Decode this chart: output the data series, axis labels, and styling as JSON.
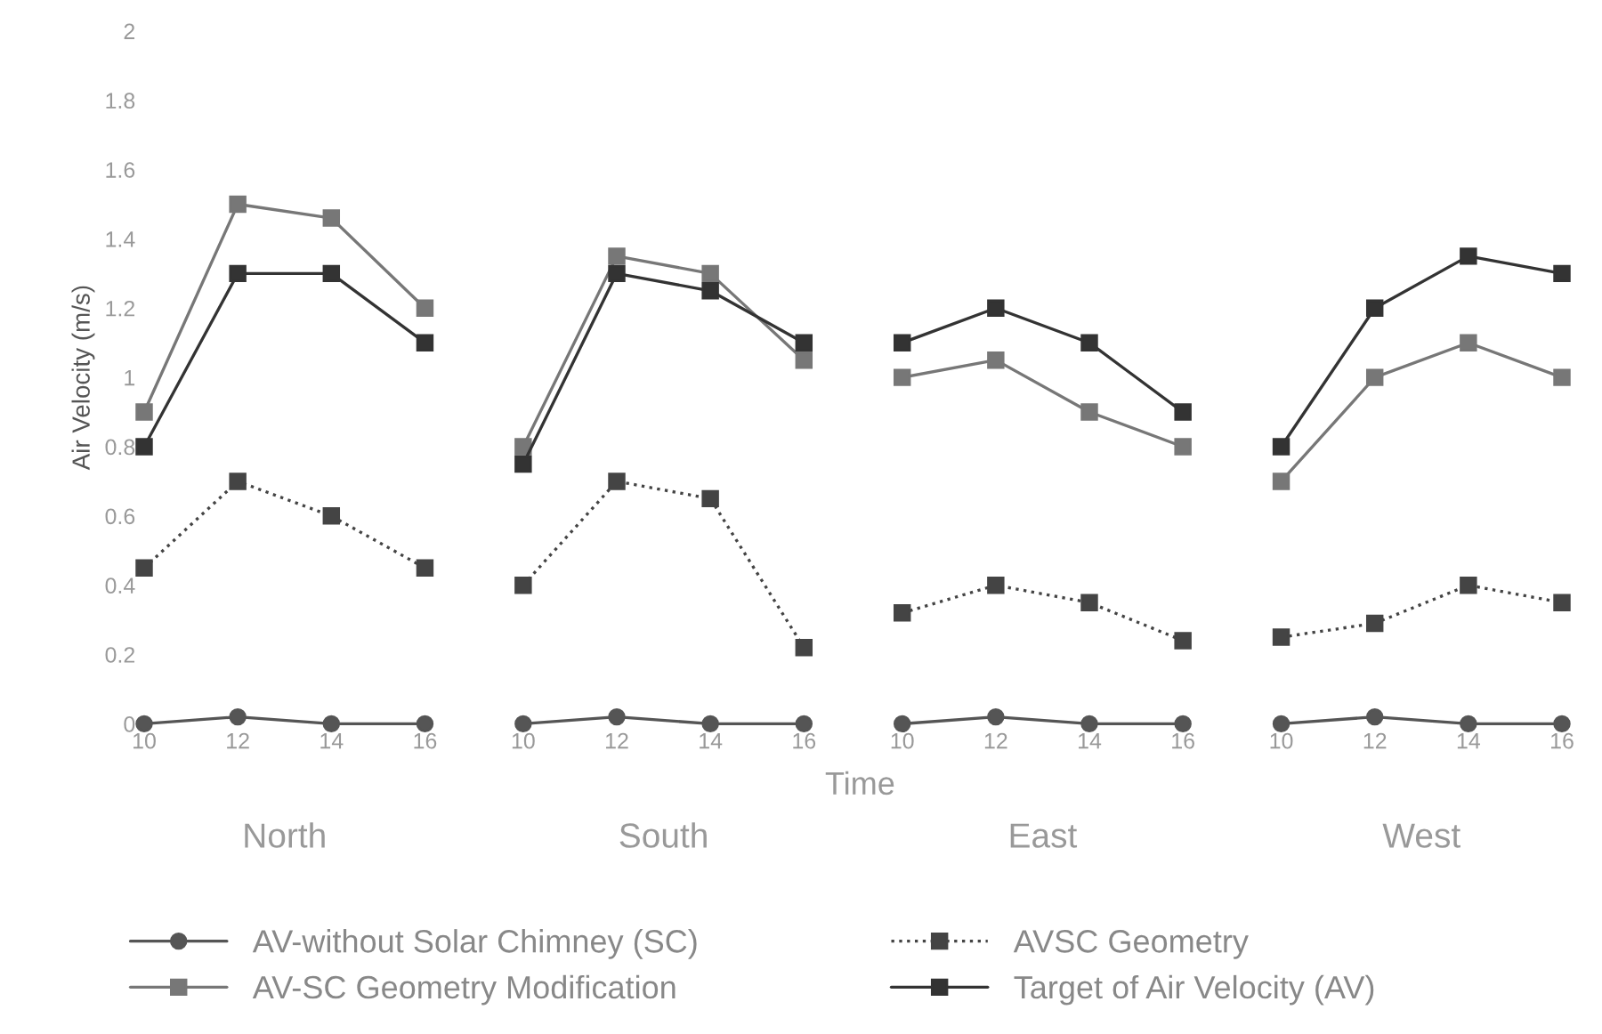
{
  "chart_data": [
    {
      "type": "line",
      "xlabel": "North",
      "ylabel": "Air Velocity (m/s)",
      "x": [
        10,
        12,
        14,
        16
      ],
      "xlim": [
        10,
        16
      ],
      "xticks": [
        10,
        12,
        14,
        16
      ],
      "ylim": [
        0,
        2
      ],
      "yticks": [
        0,
        0.2,
        0.4,
        0.6,
        0.8,
        1,
        1.2,
        1.4,
        1.6,
        1.8,
        2
      ],
      "legend": "bottom",
      "series": [
        {
          "name": "AV-without Solar Chimney (SC)",
          "color": "#555555",
          "marker": "circle",
          "line_style": "solid",
          "values": [
            0,
            0.02,
            0,
            0
          ]
        },
        {
          "name": "AV-SC Geometry Modification",
          "color": "#777777",
          "marker": "square",
          "line_style": "solid",
          "values": [
            0.9,
            1.5,
            1.46,
            1.2
          ]
        },
        {
          "name": "AVSC Geometry",
          "color": "#444444",
          "marker": "square",
          "line_style": "dotted",
          "values": [
            0.45,
            0.7,
            0.6,
            0.45
          ]
        },
        {
          "name": "Target of Air Velocity (AV)",
          "color": "#333333",
          "marker": "square",
          "line_style": "solid",
          "values": [
            0.8,
            1.3,
            1.3,
            1.1
          ]
        }
      ]
    },
    {
      "type": "line",
      "xlabel": "South",
      "x": [
        10,
        12,
        14,
        16
      ],
      "xlim": [
        10,
        16
      ],
      "xticks": [
        10,
        12,
        14,
        16
      ],
      "ylim": [
        0,
        2
      ],
      "tick_labels": "x",
      "annotations": [
        "Time"
      ],
      "series": [
        {
          "color": "#555555",
          "marker": "circle",
          "line_style": "solid",
          "values": [
            0,
            0.02,
            0,
            0
          ]
        },
        {
          "color": "#777777",
          "marker": "square",
          "line_style": "solid",
          "values": [
            0.8,
            1.35,
            1.3,
            1.05
          ]
        },
        {
          "color": "#444444",
          "marker": "square",
          "line_style": "dotted",
          "values": [
            0.4,
            0.7,
            0.65,
            0.22
          ]
        },
        {
          "color": "#333333",
          "marker": "square",
          "line_style": "solid",
          "values": [
            0.75,
            1.3,
            1.25,
            1.1
          ]
        }
      ]
    },
    {
      "type": "line",
      "xlabel": "East",
      "x": [
        10,
        12,
        14,
        16
      ],
      "xlim": [
        10,
        16
      ],
      "xticks": [
        10,
        12,
        14,
        16
      ],
      "ylim": [
        0,
        2
      ],
      "tick_labels": "x",
      "series": [
        {
          "color": "#555555",
          "marker": "circle",
          "line_style": "solid",
          "values": [
            0,
            0.02,
            0,
            0
          ]
        },
        {
          "color": "#777777",
          "marker": "square",
          "line_style": "solid",
          "values": [
            1.0,
            1.05,
            0.9,
            0.8
          ]
        },
        {
          "color": "#444444",
          "marker": "square",
          "line_style": "dotted",
          "values": [
            0.32,
            0.4,
            0.35,
            0.24
          ]
        },
        {
          "color": "#333333",
          "marker": "square",
          "line_style": "solid",
          "values": [
            1.1,
            1.2,
            1.1,
            0.9
          ]
        }
      ]
    },
    {
      "type": "line",
      "xlabel": "West",
      "x": [
        10,
        12,
        14,
        16
      ],
      "xlim": [
        10,
        16
      ],
      "xticks": [
        10,
        12,
        14,
        16
      ],
      "ylim": [
        0,
        2
      ],
      "tick_labels": "x",
      "series": [
        {
          "color": "#555555",
          "marker": "circle",
          "line_style": "solid",
          "values": [
            0,
            0.02,
            0,
            0
          ]
        },
        {
          "color": "#777777",
          "marker": "square",
          "line_style": "solid",
          "values": [
            0.7,
            1.0,
            1.1,
            1.0
          ]
        },
        {
          "color": "#444444",
          "marker": "square",
          "line_style": "dotted",
          "values": [
            0.25,
            0.29,
            0.4,
            0.35
          ]
        },
        {
          "color": "#333333",
          "marker": "square",
          "line_style": "solid",
          "values": [
            0.8,
            1.2,
            1.35,
            1.3
          ]
        }
      ]
    }
  ]
}
